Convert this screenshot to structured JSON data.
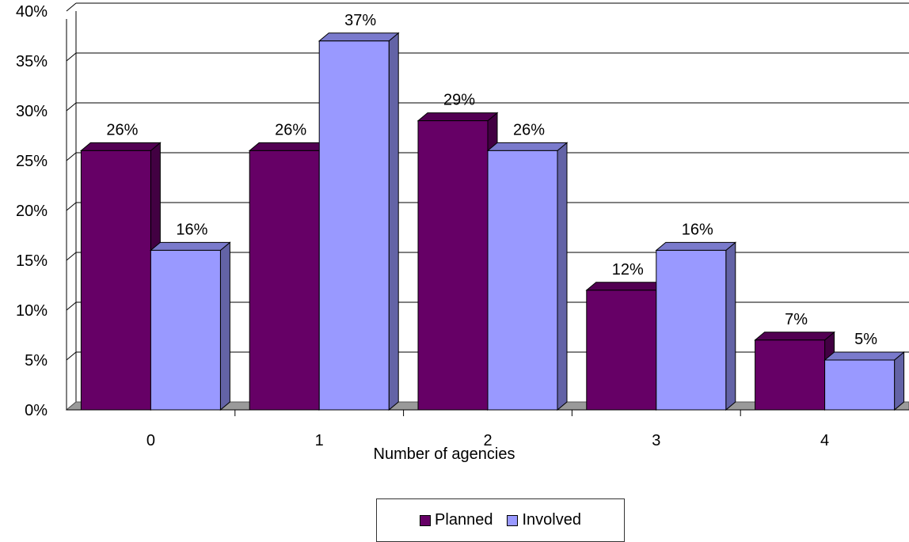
{
  "chart_data": {
    "type": "bar",
    "style": "3d-clustered",
    "categories": [
      "0",
      "1",
      "2",
      "3",
      "4"
    ],
    "series": [
      {
        "name": "Planned",
        "values": [
          26,
          26,
          29,
          12,
          7
        ],
        "labels": [
          "26%",
          "26%",
          "29%",
          "12%",
          "7%"
        ],
        "color": "#660066"
      },
      {
        "name": "Involved",
        "values": [
          16,
          37,
          26,
          16,
          5
        ],
        "labels": [
          "16%",
          "37%",
          "26%",
          "16%",
          "5%"
        ],
        "color": "#9999ff"
      }
    ],
    "xlabel": "Number of agencies",
    "ylabel": "",
    "ylim": [
      0,
      40
    ],
    "yticks": [
      "0%",
      "5%",
      "10%",
      "15%",
      "20%",
      "25%",
      "30%",
      "35%",
      "40%"
    ],
    "grid": true,
    "legend_position": "bottom"
  }
}
